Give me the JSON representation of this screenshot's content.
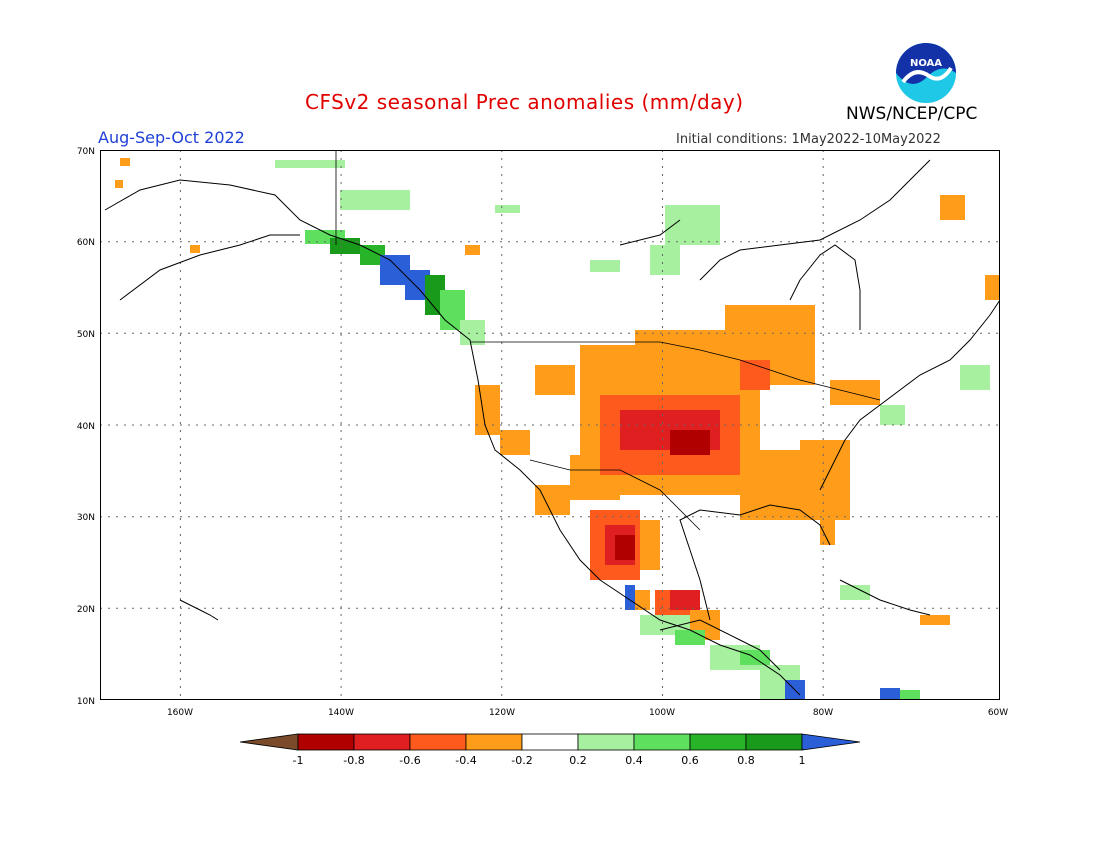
{
  "title": "CFSv2 seasonal Prec anomalies (mm/day)",
  "season": "Aug-Sep-Oct 2022",
  "initial_conditions": "Initial conditions: 1May2022-10May2022",
  "agency": "NWS/NCEP/CPC",
  "logo_text": "NOAA",
  "map": {
    "lat_labels": [
      "70N",
      "60N",
      "50N",
      "40N",
      "30N",
      "20N",
      "10N"
    ],
    "lon_labels": [
      "160W",
      "140W",
      "120W",
      "100W",
      "80W",
      "60W"
    ],
    "extent": {
      "lon_min": -172,
      "lon_max": -60,
      "lat_min": 10,
      "lat_max": 70
    }
  },
  "colorbar": {
    "labels": [
      "-1",
      "-0.8",
      "-0.6",
      "-0.4",
      "-0.2",
      "0.2",
      "0.4",
      "0.6",
      "0.8",
      "1"
    ],
    "colors": [
      "#7a4a2a",
      "#b00000",
      "#e02020",
      "#ff5a1e",
      "#ff9d1a",
      "#ffffff",
      "#a6f0a0",
      "#5ee05e",
      "#28b428",
      "#1a9a1a",
      "#2a5fd8"
    ]
  },
  "colors": {
    "orange": "#ff9d1a",
    "red_orange": "#ff5a1e",
    "red": "#e02020",
    "dark_red": "#b00000",
    "light_green": "#a6f0a0",
    "green": "#5ee05e",
    "dark_green": "#1a9a1a",
    "blue": "#2a5fd8"
  }
}
